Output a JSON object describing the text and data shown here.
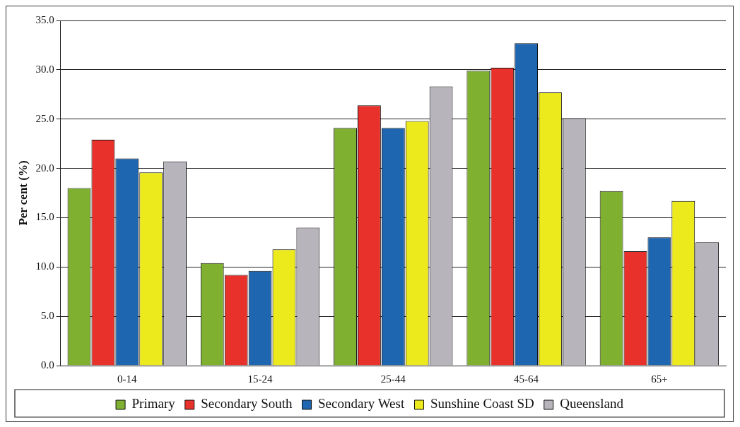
{
  "chart_data": {
    "type": "bar",
    "ylabel": "Per cent (%)",
    "categories": [
      "0-14",
      "15-24",
      "25-44",
      "45-64",
      "65+"
    ],
    "series": [
      {
        "name": "Primary",
        "color": "#7fb030",
        "values": [
          18.0,
          10.4,
          24.1,
          29.9,
          17.7
        ]
      },
      {
        "name": "Secondary South",
        "color": "#e8312a",
        "values": [
          22.9,
          9.2,
          26.4,
          30.2,
          11.6
        ]
      },
      {
        "name": "Secondary West",
        "color": "#1f66b0",
        "values": [
          21.0,
          9.6,
          24.1,
          32.7,
          13.0
        ]
      },
      {
        "name": "Sunshine Coast SD",
        "color": "#ecea1c",
        "values": [
          19.6,
          11.8,
          24.8,
          27.7,
          16.7
        ]
      },
      {
        "name": "Queensland",
        "color": "#b8b4bc",
        "values": [
          20.7,
          14.0,
          28.3,
          25.1,
          12.5
        ]
      }
    ],
    "ylim": [
      0,
      35
    ],
    "yticks": [
      {
        "value": 0,
        "label": "0.0"
      },
      {
        "value": 5,
        "label": "5.0"
      },
      {
        "value": 10,
        "label": "10.0"
      },
      {
        "value": 15,
        "label": "15.0"
      },
      {
        "value": 20,
        "label": "20.0"
      },
      {
        "value": 25,
        "label": "25.0"
      },
      {
        "value": 30,
        "label": "30.0"
      },
      {
        "value": 35,
        "label": "35.0"
      }
    ],
    "grid": "y",
    "legend": "bottom"
  }
}
